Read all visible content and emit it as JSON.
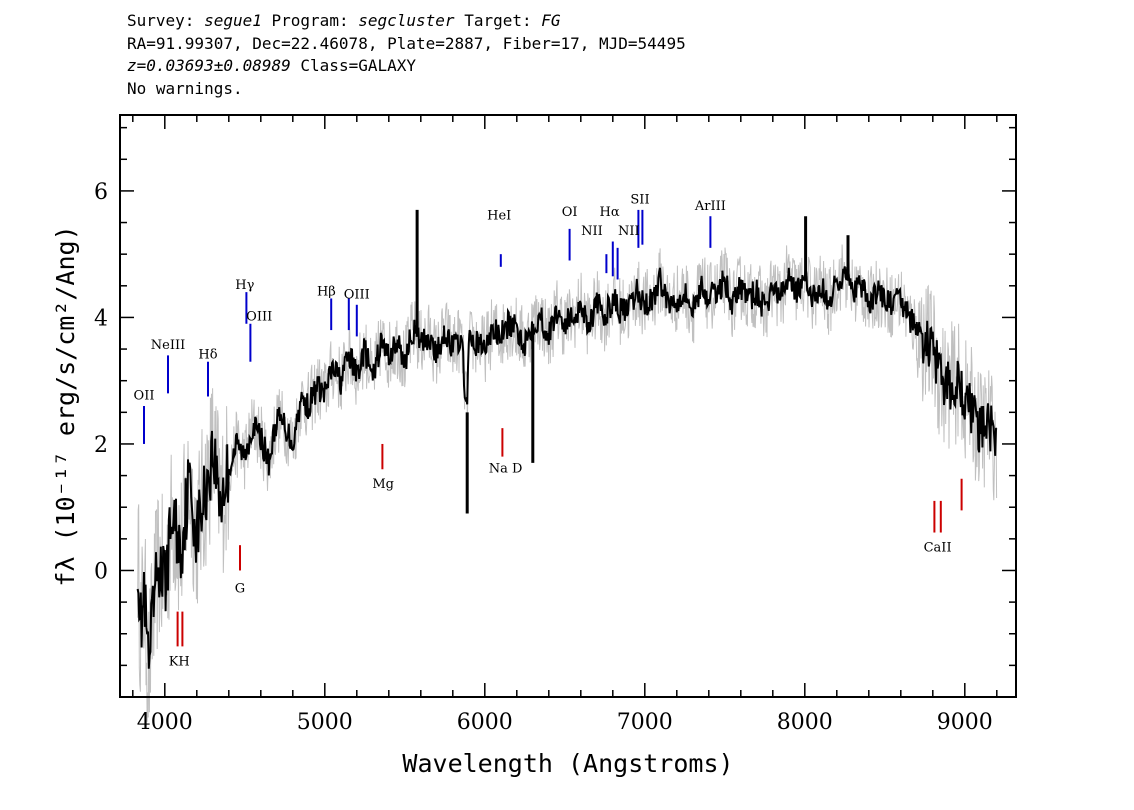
{
  "header": {
    "survey_label": "Survey:",
    "survey": "segue1",
    "program_label": "Program:",
    "program": "segcluster",
    "target_label": "Target:",
    "target": "FG",
    "line2": "RA=91.99307, Dec=22.46078, Plate=2887, Fiber=17, MJD=54495",
    "redshift": "z=0.03693±0.08989",
    "class": "Class=GALAXY",
    "warnings": "No warnings."
  },
  "chart_data": {
    "type": "line",
    "xlabel": "Wavelength (Angstroms)",
    "ylabel": "fλ (10⁻¹⁷ erg/s/cm²/Ang)",
    "xlim": [
      3720,
      9320
    ],
    "ylim": [
      -2,
      7.2
    ],
    "xticks": [
      4000,
      5000,
      6000,
      7000,
      8000,
      9000
    ],
    "yticks": [
      0,
      2,
      4,
      6
    ],
    "colors": {
      "flux": "#000000",
      "raw": "#c0c0c0",
      "emission": "#0000cc",
      "absorption": "#cc0000"
    },
    "series": [
      {
        "style": "smoothed",
        "x": [
          3830,
          3850,
          3870,
          3900,
          3930,
          3960,
          4000,
          4050,
          4100,
          4150,
          4200,
          4250,
          4300,
          4350,
          4400,
          4450,
          4500,
          4550,
          4600,
          4650,
          4700,
          4750,
          4800,
          4850,
          4900,
          4950,
          5000,
          5050,
          5100,
          5150,
          5200,
          5250,
          5300,
          5350,
          5400,
          5450,
          5500,
          5550,
          5600,
          5650,
          5700,
          5750,
          5800,
          5850,
          5890,
          5900,
          5950,
          6000,
          6050,
          6100,
          6150,
          6200,
          6250,
          6300,
          6350,
          6400,
          6450,
          6500,
          6550,
          6600,
          6650,
          6700,
          6750,
          6800,
          6850,
          6900,
          6950,
          7000,
          7050,
          7100,
          7150,
          7200,
          7250,
          7300,
          7350,
          7400,
          7450,
          7500,
          7550,
          7600,
          7650,
          7700,
          7750,
          7800,
          7850,
          7900,
          7950,
          8000,
          8050,
          8100,
          8150,
          8200,
          8250,
          8300,
          8350,
          8400,
          8450,
          8500,
          8550,
          8600,
          8650,
          8700,
          8750,
          8800,
          8850,
          8900,
          8950,
          9000,
          9050,
          9100,
          9150,
          9200
        ],
        "y": [
          0.3,
          -0.9,
          -0.4,
          -1.6,
          -0.6,
          0.1,
          -0.2,
          0.9,
          0.3,
          1.4,
          0.6,
          1.2,
          1.9,
          1.1,
          1.6,
          2.0,
          1.8,
          2.3,
          2.1,
          1.7,
          2.4,
          2.3,
          2.0,
          2.7,
          2.6,
          2.9,
          2.8,
          3.2,
          3.0,
          3.4,
          3.1,
          3.5,
          3.0,
          3.6,
          3.4,
          3.6,
          3.3,
          3.8,
          3.6,
          3.7,
          3.4,
          3.8,
          3.5,
          3.7,
          2.5,
          3.6,
          3.6,
          3.5,
          3.8,
          3.7,
          3.9,
          3.8,
          3.6,
          3.9,
          4.0,
          3.7,
          4.1,
          3.9,
          4.0,
          4.2,
          3.9,
          4.2,
          4.0,
          4.3,
          4.1,
          4.1,
          4.4,
          4.2,
          4.3,
          4.6,
          4.2,
          4.3,
          4.4,
          4.1,
          4.5,
          4.3,
          4.4,
          4.6,
          4.2,
          4.5,
          4.3,
          4.4,
          4.1,
          4.5,
          4.3,
          4.7,
          4.4,
          4.6,
          4.3,
          4.5,
          4.2,
          4.6,
          4.7,
          4.4,
          4.5,
          4.2,
          4.4,
          4.3,
          4.2,
          4.3,
          4.0,
          3.8,
          3.6,
          3.5,
          3.0,
          2.9,
          3.0,
          2.7,
          2.5,
          2.2,
          2.3,
          2.0
        ]
      }
    ],
    "spikes": [
      {
        "x": 5577,
        "y": 5.7
      },
      {
        "x": 5890,
        "y": 0.9
      },
      {
        "x": 6300,
        "y": 1.7
      },
      {
        "x": 8005,
        "y": 5.6
      },
      {
        "x": 8270,
        "y": 5.3
      }
    ],
    "emission_lines": [
      {
        "label": "OII",
        "x": 3870,
        "y_top": 2.6,
        "y_bottom": 2.0
      },
      {
        "label": "NeIII",
        "x": 4020,
        "y_top": 3.4,
        "y_bottom": 2.8
      },
      {
        "label": "Hδ",
        "x": 4270,
        "y_top": 3.3,
        "y_bottom": 2.75
      },
      {
        "label": "Hγ",
        "x": 4510,
        "y_top": 4.4,
        "y_bottom": 3.9
      },
      {
        "label": "OIII",
        "x": 4535,
        "y_top": 3.9,
        "y_bottom": 3.3
      },
      {
        "label": "Hβ",
        "x": 5040,
        "y_top": 4.3,
        "y_bottom": 3.8
      },
      {
        "label": "OIII",
        "x": 5150,
        "y_top": 4.3,
        "y_bottom": 3.8
      },
      {
        "label": "OIII",
        "x": 5200,
        "y_top": 4.2,
        "y_bottom": 3.7
      },
      {
        "label": "HeI",
        "x": 6100,
        "y_top": 5.0,
        "y_bottom": 4.8
      },
      {
        "label": "OI",
        "x": 6530,
        "y_top": 5.4,
        "y_bottom": 4.9
      },
      {
        "label": "NII",
        "x": 6760,
        "y_top": 5.0,
        "y_bottom": 4.7
      },
      {
        "label": "Hα",
        "x": 6800,
        "y_top": 5.2,
        "y_bottom": 4.65
      },
      {
        "label": "NII",
        "x": 6830,
        "y_top": 5.1,
        "y_bottom": 4.6
      },
      {
        "label": "SII",
        "x": 6960,
        "y_top": 5.7,
        "y_bottom": 5.1
      },
      {
        "label": "SII",
        "x": 6985,
        "y_top": 5.7,
        "y_bottom": 5.15
      },
      {
        "label": "ArIII",
        "x": 7410,
        "y_top": 5.6,
        "y_bottom": 5.1
      }
    ],
    "emission_labels": [
      {
        "text": "OII",
        "x": 3870,
        "y": 2.7
      },
      {
        "text": "NeIII",
        "x": 4020,
        "y": 3.5
      },
      {
        "text": "Hδ",
        "x": 4270,
        "y": 3.35
      },
      {
        "text": "Hγ",
        "x": 4500,
        "y": 4.45
      },
      {
        "text": "OIII",
        "x": 4590,
        "y": 3.95
      },
      {
        "text": "Hβ",
        "x": 5010,
        "y": 4.35
      },
      {
        "text": "OIII",
        "x": 5200,
        "y": 4.3
      },
      {
        "text": "HeI",
        "x": 6090,
        "y": 5.55
      },
      {
        "text": "OI",
        "x": 6530,
        "y": 5.6
      },
      {
        "text": "NII",
        "x": 6670,
        "y": 5.3
      },
      {
        "text": "Hα",
        "x": 6780,
        "y": 5.6
      },
      {
        "text": "NII",
        "x": 6900,
        "y": 5.3
      },
      {
        "text": "SII",
        "x": 6970,
        "y": 5.8
      },
      {
        "text": "ArIII",
        "x": 7410,
        "y": 5.7
      }
    ],
    "absorption_lines": [
      {
        "label": "K",
        "x": 4080,
        "y_top": -0.65,
        "y_bottom": -1.2
      },
      {
        "label": "H",
        "x": 4110,
        "y_top": -0.65,
        "y_bottom": -1.2
      },
      {
        "label": "G",
        "x": 4470,
        "y_top": 0.4,
        "y_bottom": 0.0
      },
      {
        "label": "Mg",
        "x": 5360,
        "y_top": 2.0,
        "y_bottom": 1.6
      },
      {
        "label": "Na D",
        "x": 6110,
        "y_top": 2.25,
        "y_bottom": 1.8
      },
      {
        "label": "CaII",
        "x": 8810,
        "y_top": 1.1,
        "y_bottom": 0.6
      },
      {
        "label": "CaII",
        "x": 8850,
        "y_top": 1.1,
        "y_bottom": 0.6
      },
      {
        "label": "CaII",
        "x": 8980,
        "y_top": 1.45,
        "y_bottom": 0.95
      }
    ],
    "absorption_labels": [
      {
        "text": "K",
        "x": 4055,
        "y": -1.5
      },
      {
        "text": "H",
        "x": 4120,
        "y": -1.5
      },
      {
        "text": "G",
        "x": 4470,
        "y": -0.35
      },
      {
        "text": "Mg",
        "x": 5365,
        "y": 1.3
      },
      {
        "text": "Na D",
        "x": 6130,
        "y": 1.55
      },
      {
        "text": "CaII",
        "x": 8830,
        "y": 0.3
      }
    ]
  }
}
